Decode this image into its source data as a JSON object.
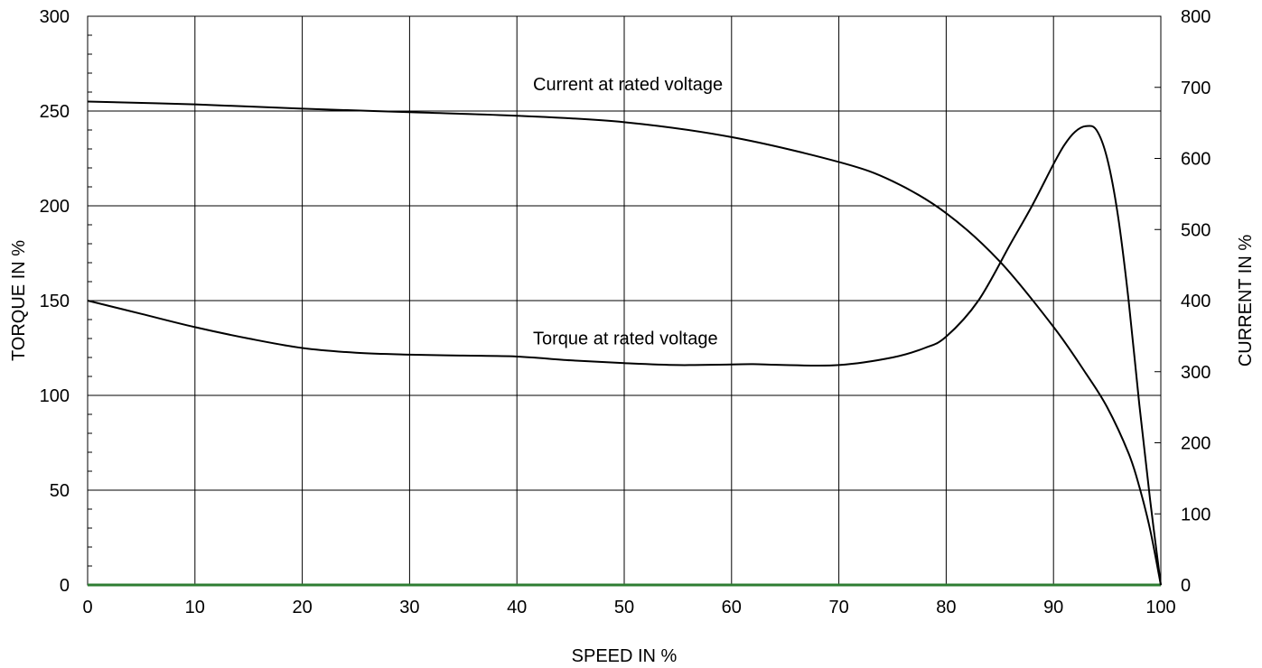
{
  "chart_data": {
    "type": "line",
    "xlabel": "SPEED IN %",
    "ylabel": "TORQUE IN %",
    "y2label": "CURRENT IN %",
    "xlim": [
      0,
      100
    ],
    "ylim": [
      0,
      300
    ],
    "y2lim": [
      0,
      800
    ],
    "x_ticks": [
      0,
      10,
      20,
      30,
      40,
      50,
      60,
      70,
      80,
      90,
      100
    ],
    "y_ticks": [
      0,
      50,
      100,
      150,
      200,
      250,
      300
    ],
    "y2_ticks": [
      0,
      100,
      200,
      300,
      400,
      500,
      600,
      700,
      800
    ],
    "grid": true,
    "series": [
      {
        "name": "Current at rated voltage",
        "axis": "right",
        "x": [
          0,
          10,
          20,
          30,
          40,
          50,
          60,
          70,
          75,
          80,
          85,
          90,
          93,
          95,
          97,
          98,
          99,
          100
        ],
        "y": [
          680,
          676,
          670,
          665,
          660,
          651,
          630,
          595,
          568,
          523,
          455,
          363,
          298,
          250,
          185,
          138,
          78,
          0
        ]
      },
      {
        "name": "Torque at rated voltage",
        "axis": "left",
        "x": [
          0,
          5,
          10,
          15,
          20,
          25,
          30,
          35,
          40,
          45,
          50,
          55,
          60,
          62,
          65,
          70,
          75,
          78,
          80,
          83,
          86,
          88,
          90,
          91,
          92,
          93,
          94,
          95,
          96,
          97,
          98,
          99,
          100
        ],
        "y": [
          150,
          143,
          136,
          130,
          125,
          122.5,
          121.5,
          121,
          120.5,
          118.5,
          117,
          116,
          116.3,
          116.5,
          116,
          116,
          120,
          125,
          131,
          150,
          180,
          200,
          222,
          232,
          239,
          242,
          240,
          225,
          195,
          150,
          95,
          45,
          0
        ]
      }
    ],
    "annotations": [
      {
        "text": "Current at rated voltage",
        "x": 41.5,
        "y": 261
      },
      {
        "text": "Torque at rated voltage",
        "x": 41.5,
        "y": 127
      }
    ],
    "baseline": {
      "y": 0,
      "color": "#2e7d32"
    }
  }
}
